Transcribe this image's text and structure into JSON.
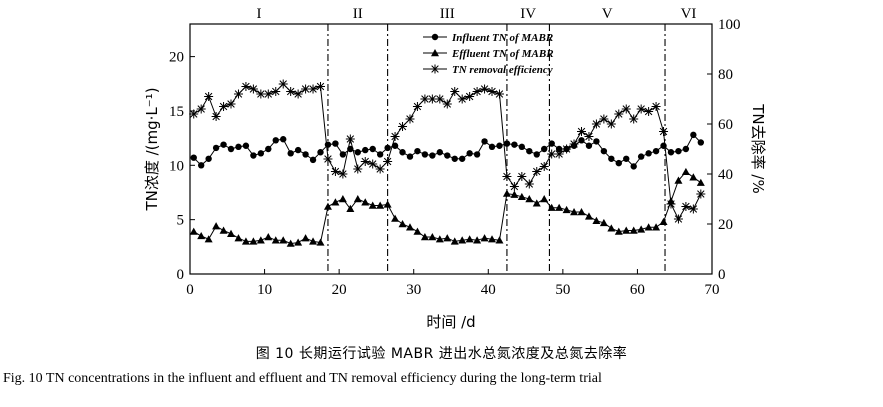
{
  "chart_data": {
    "type": "line",
    "xlabel": "时间 /d",
    "ylabel_left": "TN浓度 /(mg·L⁻¹)",
    "ylabel_right": "TN去除率 /%",
    "xlim": [
      0,
      70
    ],
    "ylim_left": [
      0,
      23
    ],
    "ylim_right": [
      0,
      100
    ],
    "xticks": [
      0,
      10,
      20,
      30,
      40,
      50,
      60,
      70
    ],
    "yticks_left": [
      0,
      5,
      10,
      15,
      20
    ],
    "yticks_right": [
      0,
      20,
      40,
      60,
      80,
      100
    ],
    "grid": false,
    "legend_position": "top-center",
    "phases": [
      {
        "label": "I",
        "start": 0,
        "end": 18.5
      },
      {
        "label": "II",
        "start": 18.5,
        "end": 26.5
      },
      {
        "label": "III",
        "start": 26.5,
        "end": 42.5
      },
      {
        "label": "IV",
        "start": 42.5,
        "end": 48.2
      },
      {
        "label": "V",
        "start": 48.2,
        "end": 63.7
      },
      {
        "label": "VI",
        "start": 63.7,
        "end": 70
      }
    ],
    "phase_boundaries": [
      18.5,
      26.5,
      42.5,
      48.2,
      63.7
    ],
    "series": [
      {
        "name": "Influent TN of MABR",
        "axis": "left",
        "marker": "circle",
        "x": [
          0.5,
          1.5,
          2.5,
          3.5,
          4.5,
          5.5,
          6.5,
          7.5,
          8.5,
          9.5,
          10.5,
          11.5,
          12.5,
          13.5,
          14.5,
          15.5,
          16.5,
          17.5,
          18.5,
          19.5,
          20.5,
          21.5,
          22.5,
          23.5,
          24.5,
          25.5,
          26.5,
          27.5,
          28.5,
          29.5,
          30.5,
          31.5,
          32.5,
          33.5,
          34.5,
          35.5,
          36.5,
          37.5,
          38.5,
          39.5,
          40.5,
          41.5,
          42.5,
          43.5,
          44.5,
          45.5,
          46.5,
          47.5,
          48.5,
          49.5,
          50.5,
          51.5,
          52.5,
          53.5,
          54.5,
          55.5,
          56.5,
          57.5,
          58.5,
          59.5,
          60.5,
          61.5,
          62.5,
          63.5,
          64.5,
          65.5,
          66.5,
          67.5,
          68.5
        ],
        "values": [
          10.7,
          10.0,
          10.6,
          11.6,
          11.9,
          11.5,
          11.7,
          11.8,
          10.9,
          11.1,
          11.5,
          12.3,
          12.4,
          11.1,
          11.4,
          11.0,
          10.5,
          11.2,
          11.9,
          12.0,
          11.0,
          11.5,
          11.2,
          11.4,
          11.5,
          11.0,
          11.6,
          11.8,
          11.2,
          10.8,
          11.3,
          11.0,
          10.9,
          11.2,
          10.9,
          10.6,
          10.6,
          11.1,
          11.0,
          12.2,
          11.7,
          11.8,
          12.0,
          11.9,
          11.7,
          11.3,
          11.0,
          11.5,
          12.0,
          11.5,
          11.5,
          11.8,
          12.3,
          11.8,
          12.2,
          11.3,
          10.6,
          10.2,
          10.6,
          9.9,
          10.8,
          11.1,
          11.3,
          11.8,
          11.2,
          11.3,
          11.5,
          12.8,
          12.1
        ]
      },
      {
        "name": "Effluent TN of MABR",
        "axis": "left",
        "marker": "triangle",
        "x": [
          0.5,
          1.5,
          2.5,
          3.5,
          4.5,
          5.5,
          6.5,
          7.5,
          8.5,
          9.5,
          10.5,
          11.5,
          12.5,
          13.5,
          14.5,
          15.5,
          16.5,
          17.5,
          18.5,
          19.5,
          20.5,
          21.5,
          22.5,
          23.5,
          24.5,
          25.5,
          26.5,
          27.5,
          28.5,
          29.5,
          30.5,
          31.5,
          32.5,
          33.5,
          34.5,
          35.5,
          36.5,
          37.5,
          38.5,
          39.5,
          40.5,
          41.5,
          42.5,
          43.5,
          44.5,
          45.5,
          46.5,
          47.5,
          48.5,
          49.5,
          50.5,
          51.5,
          52.5,
          53.5,
          54.5,
          55.5,
          56.5,
          57.5,
          58.5,
          59.5,
          60.5,
          61.5,
          62.5,
          63.5,
          64.5,
          65.5,
          66.5,
          67.5,
          68.5
        ],
        "values": [
          3.9,
          3.5,
          3.2,
          4.4,
          4.0,
          3.7,
          3.3,
          3.0,
          3.0,
          3.1,
          3.4,
          3.1,
          3.1,
          2.8,
          2.9,
          3.3,
          3.0,
          2.9,
          6.2,
          6.6,
          6.9,
          6.0,
          6.9,
          6.6,
          6.3,
          6.3,
          6.4,
          5.1,
          4.6,
          4.3,
          3.9,
          3.4,
          3.4,
          3.2,
          3.3,
          3.0,
          3.1,
          3.2,
          3.1,
          3.3,
          3.2,
          3.1,
          7.4,
          7.3,
          7.1,
          6.9,
          6.5,
          6.9,
          6.1,
          6.1,
          5.9,
          5.7,
          5.7,
          5.3,
          4.9,
          4.7,
          4.2,
          3.9,
          4.0,
          4.0,
          4.1,
          4.3,
          4.3,
          4.8,
          6.7,
          8.6,
          9.4,
          8.9,
          8.4
        ]
      },
      {
        "name": "TN removal efficiency",
        "axis": "right",
        "marker": "asterisk",
        "x": [
          0.5,
          1.5,
          2.5,
          3.5,
          4.5,
          5.5,
          6.5,
          7.5,
          8.5,
          9.5,
          10.5,
          11.5,
          12.5,
          13.5,
          14.5,
          15.5,
          16.5,
          17.5,
          18.5,
          19.5,
          20.5,
          21.5,
          22.5,
          23.5,
          24.5,
          25.5,
          26.5,
          27.5,
          28.5,
          29.5,
          30.5,
          31.5,
          32.5,
          33.5,
          34.5,
          35.5,
          36.5,
          37.5,
          38.5,
          39.5,
          40.5,
          41.5,
          42.5,
          43.5,
          44.5,
          45.5,
          46.5,
          47.5,
          48.5,
          49.5,
          50.5,
          51.5,
          52.5,
          53.5,
          54.5,
          55.5,
          56.5,
          57.5,
          58.5,
          59.5,
          60.5,
          61.5,
          62.5,
          63.5,
          64.5,
          65.5,
          66.5,
          67.5,
          68.5
        ],
        "values": [
          64,
          66,
          71,
          63,
          67,
          68,
          72,
          75,
          74,
          72,
          72,
          73,
          76,
          73,
          72,
          74,
          74,
          75,
          46,
          41,
          40,
          54,
          42,
          45,
          44,
          42,
          45,
          55,
          59,
          62,
          67,
          70,
          70,
          70,
          68,
          73,
          70,
          71,
          73,
          74,
          73,
          72,
          39,
          35,
          39,
          36,
          41,
          43,
          48,
          48,
          50,
          52,
          57,
          55,
          60,
          62,
          60,
          64,
          66,
          62,
          66,
          65,
          67,
          57,
          28,
          22,
          27,
          26,
          32
        ]
      }
    ]
  },
  "caption_cn": "图 10   长期运行试验 MABR 进出水总氮浓度及总氮去除率",
  "caption_en": "Fig. 10   TN concentrations in the influent and effluent and TN removal efficiency during the long-term trial"
}
